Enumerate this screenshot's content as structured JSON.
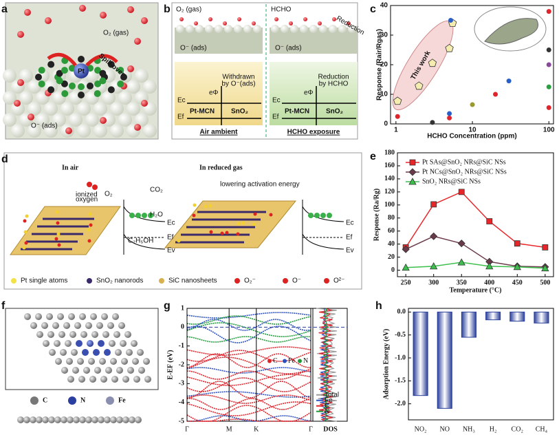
{
  "panel_a": {
    "label": "a",
    "gas": "O₂ (gas)",
    "spillover": "Spill-over",
    "pt": "Pt",
    "ads": "O⁻ (ads)"
  },
  "panel_b": {
    "label": "b",
    "left": {
      "gas": "O₂ (gas)",
      "ads": "O⁻ (ads)",
      "note": [
        "Withdrawn",
        "by O⁻(ads)"
      ],
      "phi": "eΦ",
      "ec": "Ec",
      "ef": "Ef",
      "pt_mcn": "Pt-MCN",
      "sno2": "SnO₂",
      "caption": "Air ambient"
    },
    "right": {
      "gas": "HCHO",
      "arrow": "Reduction",
      "ads": "O⁻ (ads)",
      "note": [
        "Reduction",
        "by HCHO"
      ],
      "phi": "eΦ",
      "ec": "Ec",
      "ef": "Ef",
      "pt_mcn": "Pt-MCN",
      "sno2": "SnO₂",
      "caption": "HCHO exposure"
    }
  },
  "panel_d": {
    "label": "d",
    "left_title": "In air",
    "right_title": "In reduced gas",
    "note": "lowering activation energy",
    "ionized": [
      "ionized",
      "oxygen"
    ],
    "o2": "O₂",
    "co2": "CO₂",
    "h2o": "H₂O",
    "ethanol": "C₂H₅OH",
    "left_levels": [
      "Ec",
      "Ef",
      "Ev"
    ],
    "right_levels": [
      "Ec",
      "Ef",
      "Ev"
    ],
    "legend": [
      "Pt single atoms",
      "SnO₂ nanorods",
      "SiC nanosheets",
      "O₂⁻",
      "O⁻",
      "O²⁻"
    ]
  },
  "panel_f": {
    "label": "f",
    "legend": [
      "C",
      "N",
      "Fe"
    ]
  },
  "chart_data": [
    {
      "type": "scatter",
      "label": "c",
      "xlabel": "HCHO Concentration (ppm)",
      "ylabel": "Response (Rair/Rgas)",
      "annotation": "This work",
      "xscale": "log",
      "xlim": [
        0.85,
        115
      ],
      "xticks": [
        1,
        10,
        100
      ],
      "ylim": [
        0,
        40
      ],
      "yticks": [
        0,
        10,
        20,
        30,
        40
      ],
      "series": [
        {
          "color": "#f5ecb0",
          "marker": "pentagon",
          "x": [
            1.05,
            2,
            3,
            5,
            5.5
          ],
          "values": [
            7.7,
            12.8,
            20.5,
            25.5,
            34
          ]
        },
        {
          "color": "#e0242c",
          "marker": "circle",
          "x": [
            1.05,
            5,
            20,
            100,
            100
          ],
          "values": [
            2.5,
            2,
            10,
            38,
            5.5
          ]
        },
        {
          "color": "#2a5fc8",
          "marker": "circle",
          "x": [
            5,
            30,
            5.2
          ],
          "values": [
            3.5,
            14.5,
            35
          ]
        },
        {
          "color": "#333333",
          "marker": "circle",
          "x": [
            3,
            100
          ],
          "values": [
            0.5,
            25
          ]
        },
        {
          "color": "#9a9a30",
          "marker": "circle",
          "x": [
            10
          ],
          "values": [
            6.5
          ]
        },
        {
          "color": "#8a4a9a",
          "marker": "circle",
          "x": [
            100
          ],
          "values": [
            20
          ]
        },
        {
          "color": "#2aa040",
          "marker": "circle",
          "x": [
            100
          ],
          "values": [
            12.5
          ]
        }
      ]
    },
    {
      "type": "line",
      "label": "e",
      "xlabel": "Temperature (°C)",
      "ylabel": "Response (Ra/Rg)",
      "x": [
        250,
        300,
        350,
        400,
        450,
        500
      ],
      "xlim": [
        235,
        515
      ],
      "xticks": [
        250,
        300,
        350,
        400,
        450,
        500
      ],
      "ylim": [
        -10,
        180
      ],
      "yticks": [
        0,
        20,
        40,
        60,
        80,
        100,
        120,
        140,
        160,
        180
      ],
      "series": [
        {
          "name": "Pt SAs@SnO₂ NRs@SiC NSs",
          "color": "#e8262a",
          "marker": "square",
          "values": [
            35,
            101,
            120,
            75,
            41,
            35
          ]
        },
        {
          "name": "Pt NCs@SnO₂ NRs@SiC NSs",
          "color": "#6b3a4a",
          "marker": "diamond",
          "values": [
            32,
            52,
            41,
            13,
            6,
            5
          ]
        },
        {
          "name": "SnO₂ NRs@SiC NSs",
          "color": "#3cbf4c",
          "marker": "triangle",
          "values": [
            4,
            6,
            12,
            6,
            5,
            3
          ]
        }
      ]
    },
    {
      "type": "band",
      "label": "g",
      "ylabel": "E-EF (eV)",
      "ylim": [
        -5,
        1
      ],
      "yticks": [
        1,
        0,
        -1,
        -2,
        -3,
        -4,
        -5
      ],
      "categories": [
        "Γ",
        "M",
        "K",
        "Γ"
      ],
      "dos_label": "DOS",
      "band_legend": [
        {
          "name": "C",
          "color": "#e0242c"
        },
        {
          "name": "Fe",
          "color": "#2a4fc0"
        },
        {
          "name": "N",
          "color": "#1f9a3a"
        }
      ],
      "dos_legend": [
        {
          "name": "Total",
          "color": "#9a9a9a"
        },
        {
          "name": "Fe",
          "color": "#2a4fc0"
        },
        {
          "name": "C",
          "color": "#e0242c"
        },
        {
          "name": "N",
          "color": "#1f9a3a"
        }
      ]
    },
    {
      "type": "bar",
      "label": "h",
      "ylabel": "Adsorption Energy (eV)",
      "color": "#2b3f9a",
      "categories": [
        "NO₂",
        "NO",
        "NH₃",
        "H₂",
        "CO₂",
        "CH₄"
      ],
      "values": [
        -1.82,
        -2.1,
        -0.55,
        -0.17,
        -0.2,
        -0.24
      ],
      "ylim": [
        -2.35,
        0.08
      ],
      "yticks": [
        {
          "value": 0,
          "label": "0.0"
        },
        {
          "value": -0.5,
          "label": "-0.5"
        },
        {
          "value": -1,
          "label": "-1.0"
        },
        {
          "value": -1.5,
          "label": "-1.5"
        },
        {
          "value": -2,
          "label": "-2.0"
        }
      ]
    }
  ]
}
